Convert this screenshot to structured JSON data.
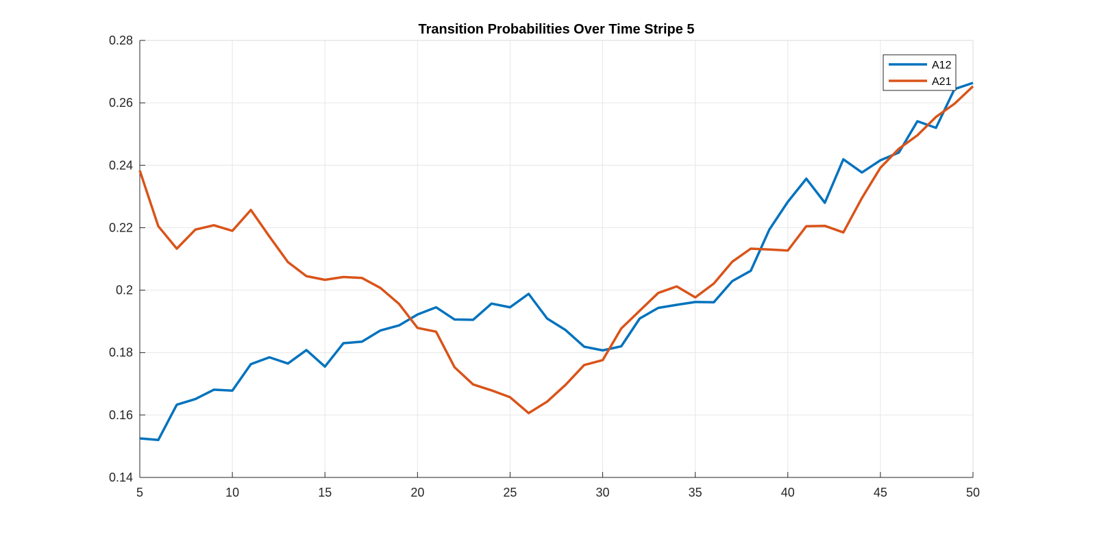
{
  "chart_data": {
    "type": "line",
    "title": "Transition Probabilities Over Time Stripe 5",
    "xlabel": "",
    "ylabel": "",
    "xlim": [
      5,
      50
    ],
    "ylim": [
      0.14,
      0.28
    ],
    "xticks": [
      5,
      10,
      15,
      20,
      25,
      30,
      35,
      40,
      45,
      50
    ],
    "xtick_labels": [
      "5",
      "10",
      "15",
      "20",
      "25",
      "30",
      "35",
      "40",
      "45",
      "50"
    ],
    "yticks": [
      0.14,
      0.16,
      0.18,
      0.2,
      0.22,
      0.24,
      0.26,
      0.28
    ],
    "ytick_labels": [
      "0.14",
      "0.16",
      "0.18",
      "0.2",
      "0.22",
      "0.24",
      "0.26",
      "0.28"
    ],
    "grid": true,
    "legend_position": "top-right",
    "x": [
      5,
      6,
      7,
      8,
      9,
      10,
      11,
      12,
      13,
      14,
      15,
      16,
      17,
      18,
      19,
      20,
      21,
      22,
      23,
      24,
      25,
      26,
      27,
      28,
      29,
      30,
      31,
      32,
      33,
      34,
      35,
      36,
      37,
      38,
      39,
      40,
      41,
      42,
      43,
      44,
      45,
      46,
      47,
      48,
      49,
      50
    ],
    "series": [
      {
        "name": "A12",
        "color": "#0072BD",
        "values": [
          0.1525,
          0.152,
          0.1633,
          0.1651,
          0.1681,
          0.1678,
          0.1763,
          0.1785,
          0.1765,
          0.1808,
          0.1755,
          0.183,
          0.1835,
          0.1871,
          0.1887,
          0.1922,
          0.1945,
          0.1906,
          0.1905,
          0.1957,
          0.1945,
          0.1988,
          0.1909,
          0.1872,
          0.1819,
          0.1807,
          0.182,
          0.1909,
          0.1943,
          0.1953,
          0.1962,
          0.1961,
          0.2029,
          0.2062,
          0.2194,
          0.2283,
          0.2357,
          0.228,
          0.2419,
          0.2377,
          0.2416,
          0.2441,
          0.2541,
          0.252,
          0.2644,
          0.2664
        ]
      },
      {
        "name": "A21",
        "color": "#D95319",
        "values": [
          0.2383,
          0.2205,
          0.2133,
          0.2194,
          0.2208,
          0.219,
          0.2257,
          0.2172,
          0.209,
          0.2045,
          0.2033,
          0.2042,
          0.2039,
          0.2007,
          0.1956,
          0.1879,
          0.1867,
          0.1753,
          0.1698,
          0.1679,
          0.1657,
          0.1606,
          0.1643,
          0.1697,
          0.176,
          0.1776,
          0.1877,
          0.1934,
          0.1991,
          0.2012,
          0.1977,
          0.2021,
          0.2091,
          0.2133,
          0.213,
          0.2127,
          0.2205,
          0.2206,
          0.2185,
          0.2295,
          0.2392,
          0.2453,
          0.2496,
          0.2555,
          0.2597,
          0.2653
        ]
      }
    ]
  }
}
